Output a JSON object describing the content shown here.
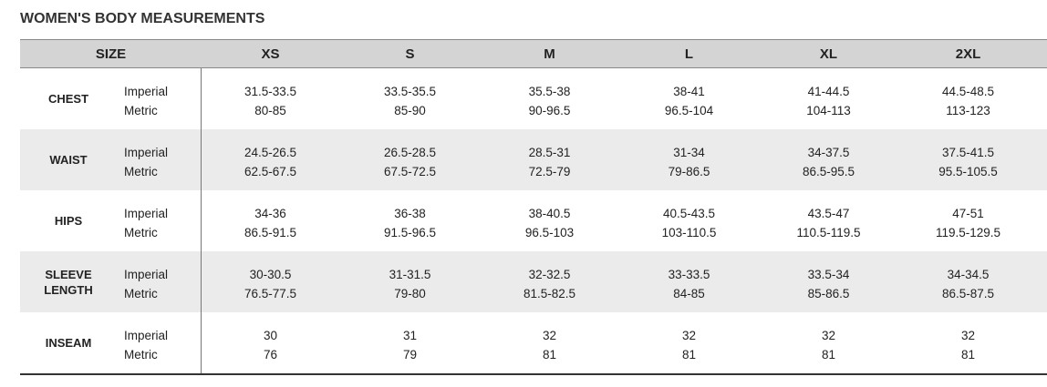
{
  "title": "WOMEN'S BODY MEASUREMENTS",
  "table": {
    "header": {
      "label": "SIZE",
      "sizes": [
        "XS",
        "S",
        "M",
        "L",
        "XL",
        "2XL"
      ]
    },
    "units": [
      "Imperial",
      "Metric"
    ],
    "rows": [
      {
        "label": "CHEST",
        "imperial": [
          "31.5-33.5",
          "33.5-35.5",
          "35.5-38",
          "38-41",
          "41-44.5",
          "44.5-48.5"
        ],
        "metric": [
          "80-85",
          "85-90",
          "90-96.5",
          "96.5-104",
          "104-113",
          "113-123"
        ]
      },
      {
        "label": "WAIST",
        "imperial": [
          "24.5-26.5",
          "26.5-28.5",
          "28.5-31",
          "31-34",
          "34-37.5",
          "37.5-41.5"
        ],
        "metric": [
          "62.5-67.5",
          "67.5-72.5",
          "72.5-79",
          "79-86.5",
          "86.5-95.5",
          "95.5-105.5"
        ]
      },
      {
        "label": "HIPS",
        "imperial": [
          "34-36",
          "36-38",
          "38-40.5",
          "40.5-43.5",
          "43.5-47",
          "47-51"
        ],
        "metric": [
          "86.5-91.5",
          "91.5-96.5",
          "96.5-103",
          "103-110.5",
          "110.5-119.5",
          "119.5-129.5"
        ]
      },
      {
        "label": "SLEEVE LENGTH",
        "imperial": [
          "30-30.5",
          "31-31.5",
          "32-32.5",
          "33-33.5",
          "33.5-34",
          "34-34.5"
        ],
        "metric": [
          "76.5-77.5",
          "79-80",
          "81.5-82.5",
          "84-85",
          "85-86.5",
          "86.5-87.5"
        ]
      },
      {
        "label": "INSEAM",
        "imperial": [
          "30",
          "31",
          "32",
          "32",
          "32",
          "32"
        ],
        "metric": [
          "76",
          "79",
          "81",
          "81",
          "81",
          "81"
        ]
      }
    ]
  }
}
